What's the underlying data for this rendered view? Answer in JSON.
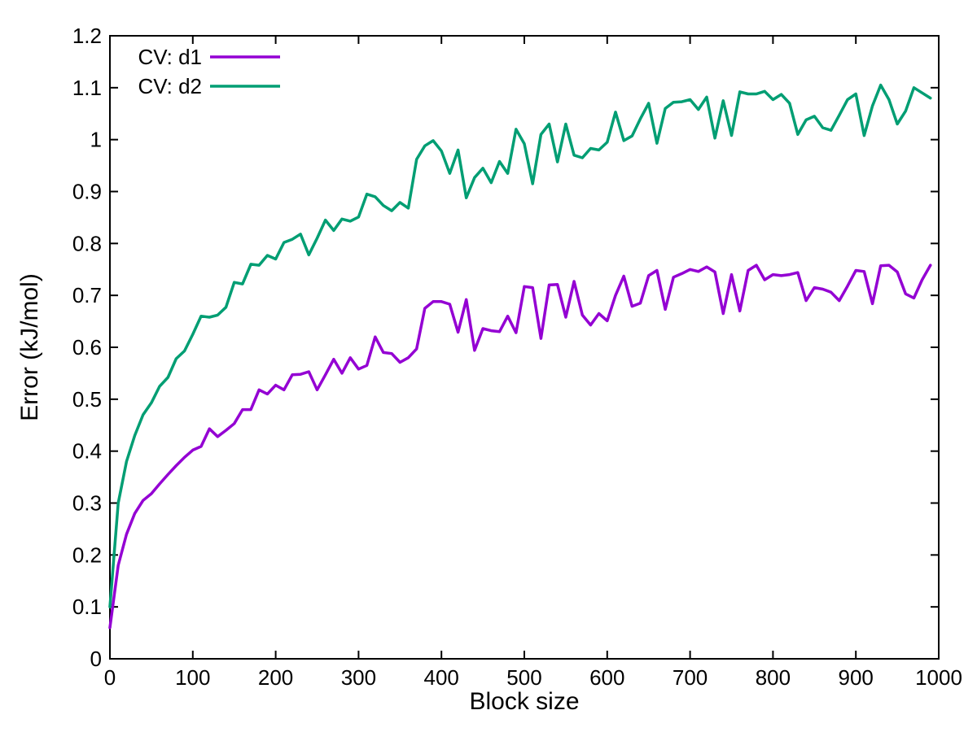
{
  "chart_data": {
    "type": "line",
    "xlabel": "Block size",
    "ylabel": "Error (kJ/mol)",
    "xlim": [
      0,
      1000
    ],
    "ylim": [
      0,
      1.2
    ],
    "xticks": [
      0,
      100,
      200,
      300,
      400,
      500,
      600,
      700,
      800,
      900,
      1000
    ],
    "yticks": [
      0,
      0.1,
      0.2,
      0.3,
      0.4,
      0.5,
      0.6,
      0.7,
      0.8,
      0.9,
      1,
      1.1,
      1.2
    ],
    "xtick_labels": [
      "0",
      "100",
      "200",
      "300",
      "400",
      "500",
      "600",
      "700",
      "800",
      "900",
      "1000"
    ],
    "ytick_labels": [
      "0",
      "0.1",
      "0.2",
      "0.3",
      "0.4",
      "0.5",
      "0.6",
      "0.7",
      "0.8",
      "0.9",
      "1",
      "1.1",
      "1.2"
    ],
    "grid": false,
    "legend_position": "top-left",
    "x": [
      0,
      10,
      20,
      30,
      40,
      50,
      60,
      70,
      80,
      90,
      100,
      110,
      120,
      130,
      140,
      150,
      160,
      170,
      180,
      190,
      200,
      210,
      220,
      230,
      240,
      250,
      260,
      270,
      280,
      290,
      300,
      310,
      320,
      330,
      340,
      350,
      360,
      370,
      380,
      390,
      400,
      410,
      420,
      430,
      440,
      450,
      460,
      470,
      480,
      490,
      500,
      510,
      520,
      530,
      540,
      550,
      560,
      570,
      580,
      590,
      600,
      610,
      620,
      630,
      640,
      650,
      660,
      670,
      680,
      690,
      700,
      710,
      720,
      730,
      740,
      750,
      760,
      770,
      780,
      790,
      800,
      810,
      820,
      830,
      840,
      850,
      860,
      870,
      880,
      890,
      900,
      910,
      920,
      930,
      940,
      950,
      960,
      970,
      980,
      990
    ],
    "series": [
      {
        "name": "CV: d1",
        "color": "#9400d3",
        "values": [
          0.06,
          0.18,
          0.24,
          0.28,
          0.305,
          0.318,
          0.337,
          0.355,
          0.372,
          0.388,
          0.402,
          0.409,
          0.443,
          0.428,
          0.44,
          0.453,
          0.48,
          0.48,
          0.518,
          0.51,
          0.527,
          0.518,
          0.547,
          0.548,
          0.553,
          0.518,
          0.547,
          0.577,
          0.55,
          0.58,
          0.558,
          0.565,
          0.62,
          0.59,
          0.588,
          0.571,
          0.58,
          0.597,
          0.675,
          0.688,
          0.688,
          0.683,
          0.629,
          0.692,
          0.594,
          0.636,
          0.632,
          0.63,
          0.66,
          0.628,
          0.717,
          0.715,
          0.617,
          0.72,
          0.721,
          0.658,
          0.727,
          0.662,
          0.643,
          0.665,
          0.651,
          0.7,
          0.737,
          0.679,
          0.685,
          0.738,
          0.748,
          0.673,
          0.735,
          0.742,
          0.75,
          0.746,
          0.755,
          0.745,
          0.665,
          0.74,
          0.67,
          0.748,
          0.758,
          0.73,
          0.74,
          0.738,
          0.74,
          0.744,
          0.69,
          0.715,
          0.712,
          0.706,
          0.69,
          0.718,
          0.748,
          0.746,
          0.684,
          0.757,
          0.758,
          0.745,
          0.703,
          0.695,
          0.73,
          0.758
        ]
      },
      {
        "name": "CV: d2",
        "color": "#009e73",
        "values": [
          0.1,
          0.3,
          0.38,
          0.43,
          0.47,
          0.493,
          0.525,
          0.542,
          0.578,
          0.593,
          0.625,
          0.66,
          0.658,
          0.662,
          0.677,
          0.725,
          0.722,
          0.76,
          0.758,
          0.777,
          0.77,
          0.802,
          0.808,
          0.818,
          0.778,
          0.81,
          0.845,
          0.825,
          0.847,
          0.843,
          0.851,
          0.895,
          0.89,
          0.873,
          0.863,
          0.879,
          0.868,
          0.962,
          0.988,
          0.998,
          0.978,
          0.935,
          0.98,
          0.888,
          0.927,
          0.945,
          0.917,
          0.958,
          0.935,
          1.02,
          0.992,
          0.915,
          1.01,
          1.03,
          0.957,
          1.03,
          0.97,
          0.965,
          0.983,
          0.98,
          0.995,
          1.053,
          0.998,
          1.007,
          1.04,
          1.07,
          0.993,
          1.06,
          1.072,
          1.073,
          1.077,
          1.058,
          1.082,
          1.003,
          1.075,
          1.008,
          1.092,
          1.088,
          1.088,
          1.093,
          1.077,
          1.087,
          1.07,
          1.01,
          1.038,
          1.045,
          1.023,
          1.018,
          1.047,
          1.077,
          1.088,
          1.008,
          1.065,
          1.105,
          1.077,
          1.03,
          1.055,
          1.1,
          1.09,
          1.08
        ]
      }
    ]
  }
}
